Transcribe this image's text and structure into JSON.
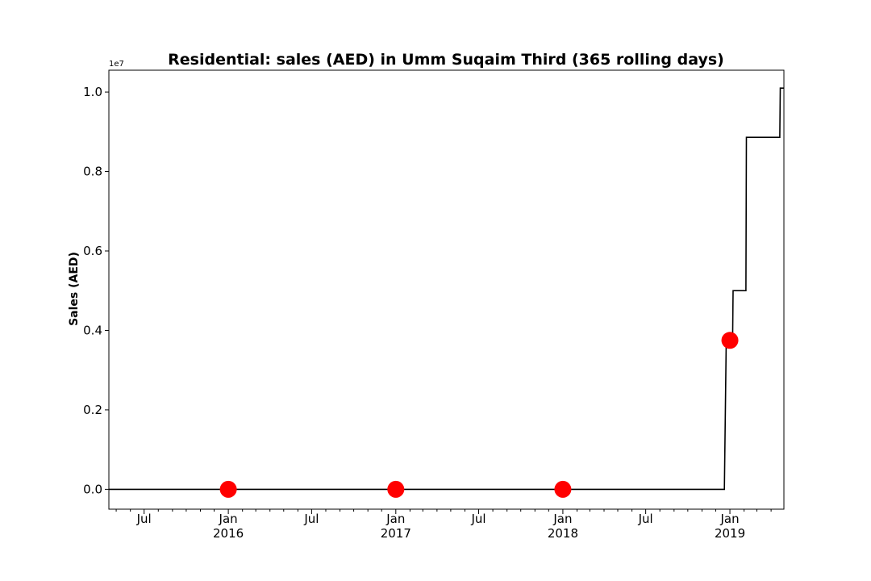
{
  "chart_data": {
    "type": "line",
    "title": "Residential: sales (AED) in Umm Suqaim Third (365 rolling days)",
    "ylabel": "Sales (AED)",
    "xlabel": "",
    "y_offset_label": "1e7",
    "y_scale": 10000000,
    "xlim": [
      "2015-04-15",
      "2019-04-29"
    ],
    "ylim": [
      -0.05,
      1.055
    ],
    "yticks": [
      0.0,
      0.2,
      0.4,
      0.6,
      0.8,
      1.0
    ],
    "ytick_labels": [
      "0.0",
      "0.2",
      "0.4",
      "0.6",
      "0.8",
      "1.0"
    ],
    "xticks_major": [
      {
        "date": "2015-07-01",
        "label": "Jul",
        "sublabel": ""
      },
      {
        "date": "2016-01-01",
        "label": "Jan",
        "sublabel": "2016"
      },
      {
        "date": "2016-07-01",
        "label": "Jul",
        "sublabel": ""
      },
      {
        "date": "2017-01-01",
        "label": "Jan",
        "sublabel": "2017"
      },
      {
        "date": "2017-07-01",
        "label": "Jul",
        "sublabel": ""
      },
      {
        "date": "2018-01-01",
        "label": "Jan",
        "sublabel": "2018"
      },
      {
        "date": "2018-07-01",
        "label": "Jul",
        "sublabel": ""
      },
      {
        "date": "2019-01-01",
        "label": "Jan",
        "sublabel": "2019"
      }
    ],
    "xticks_minor": [
      "2015-05-01",
      "2015-06-01",
      "2015-08-01",
      "2015-09-01",
      "2015-10-01",
      "2015-11-01",
      "2015-12-01",
      "2016-02-01",
      "2016-03-01",
      "2016-04-01",
      "2016-05-01",
      "2016-06-01",
      "2016-08-01",
      "2016-09-01",
      "2016-10-01",
      "2016-11-01",
      "2016-12-01",
      "2017-02-01",
      "2017-03-01",
      "2017-04-01",
      "2017-05-01",
      "2017-06-01",
      "2017-08-01",
      "2017-09-01",
      "2017-10-01",
      "2017-11-01",
      "2017-12-01",
      "2018-02-01",
      "2018-03-01",
      "2018-04-01",
      "2018-05-01",
      "2018-06-01",
      "2018-08-01",
      "2018-09-01",
      "2018-10-01",
      "2018-11-01",
      "2018-12-01",
      "2019-02-01",
      "2019-03-01",
      "2019-04-01"
    ],
    "grid": false,
    "series": [
      {
        "color": "#000000",
        "drawstyle": "steps",
        "points": [
          {
            "x": "2015-04-15",
            "y": 0.0
          },
          {
            "x": "2018-12-20",
            "y": 0.0
          },
          {
            "x": "2018-12-24",
            "y": 0.375
          },
          {
            "x": "2019-01-07",
            "y": 0.375
          },
          {
            "x": "2019-01-08",
            "y": 0.5
          },
          {
            "x": "2019-02-05",
            "y": 0.5
          },
          {
            "x": "2019-02-06",
            "y": 0.886
          },
          {
            "x": "2019-04-20",
            "y": 0.886
          },
          {
            "x": "2019-04-21",
            "y": 1.01
          },
          {
            "x": "2019-04-29",
            "y": 1.01
          }
        ]
      }
    ],
    "markers": {
      "color": "#ff0000",
      "points": [
        {
          "x": "2016-01-01",
          "y": 0.0
        },
        {
          "x": "2017-01-01",
          "y": 0.0
        },
        {
          "x": "2018-01-01",
          "y": 0.0
        },
        {
          "x": "2019-01-01",
          "y": 0.375
        }
      ]
    }
  }
}
